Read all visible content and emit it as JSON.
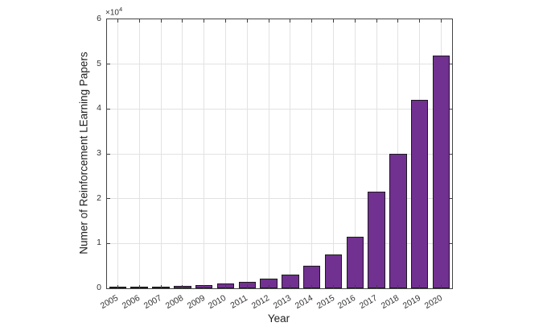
{
  "chart_data": {
    "type": "bar",
    "title": "",
    "xlabel": "Year",
    "ylabel": "Numer of Reinforcement LEarning Papers",
    "y_exponent": {
      "base": "×10",
      "power": "4"
    },
    "categories": [
      "2005",
      "2006",
      "2007",
      "2008",
      "2009",
      "2010",
      "2011",
      "2012",
      "2013",
      "2014",
      "2015",
      "2016",
      "2017",
      "2018",
      "2019",
      "2020"
    ],
    "values": [
      100,
      200,
      300,
      500,
      800,
      1000,
      1500,
      2100,
      3000,
      5000,
      7500,
      11500,
      21500,
      30000,
      42000,
      52000
    ],
    "ylim": [
      0,
      60000
    ],
    "yticks": [
      0,
      1,
      2,
      3,
      4,
      5,
      6
    ],
    "ytick_scale": 10000,
    "grid": true,
    "legend": null,
    "bar_color": "#713190",
    "bar_edge_color": "#1a1a1a",
    "grid_color": "#e2e2e2",
    "axis_color": "#444444",
    "tick_label_color": "#333333",
    "xtick_rotation_deg": -30
  }
}
